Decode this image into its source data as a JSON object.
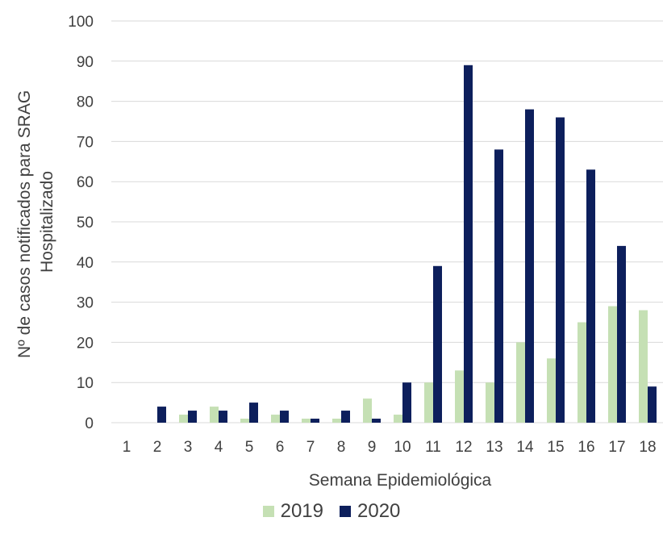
{
  "chart_data": {
    "type": "bar",
    "xlabel": "Semana Epidemiológica",
    "ylabel_lines": [
      "Nº de casos notificados para SRAG",
      "Hospitalizado"
    ],
    "ylim": [
      0,
      100
    ],
    "yticks": [
      0,
      10,
      20,
      30,
      40,
      50,
      60,
      70,
      80,
      90,
      100
    ],
    "grid": true,
    "legend_position": "bottom",
    "categories": [
      "1",
      "2",
      "3",
      "4",
      "5",
      "6",
      "7",
      "8",
      "9",
      "10",
      "11",
      "12",
      "13",
      "14",
      "15",
      "16",
      "17",
      "18"
    ],
    "series": [
      {
        "name": "2019",
        "color": "#c5e0b4",
        "values": [
          0,
          0,
          2,
          4,
          1,
          2,
          1,
          1,
          6,
          2,
          10,
          13,
          10,
          20,
          16,
          25,
          29,
          28
        ]
      },
      {
        "name": "2020",
        "color": "#0d1f5c",
        "values": [
          0,
          4,
          3,
          3,
          5,
          3,
          1,
          3,
          1,
          10,
          39,
          89,
          68,
          78,
          76,
          63,
          44,
          9
        ]
      }
    ]
  }
}
